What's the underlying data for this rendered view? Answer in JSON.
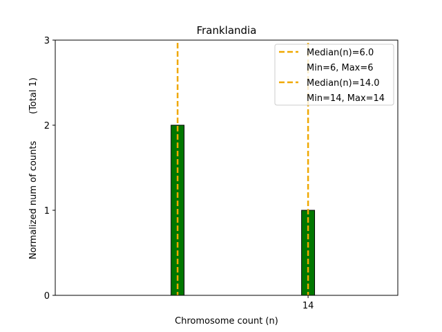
{
  "chart_data": {
    "type": "bar",
    "title": "Franklandia",
    "xlabel": "Chromosome count (n)",
    "ylabel": "Normalized num of counts",
    "ylabel_note": "(Total 1)",
    "ylim": [
      0,
      3
    ],
    "xlim": [
      -1.5,
      19.5
    ],
    "yticks": [
      0,
      1,
      2,
      3
    ],
    "xticks": [
      14
    ],
    "bar_width": 0.8,
    "bars": [
      {
        "x": 6,
        "value": 2
      },
      {
        "x": 14,
        "value": 1
      }
    ],
    "baseline_span": [
      -1.5,
      5.7
    ],
    "bar_color": "#007700",
    "median_color": "#f0a800",
    "medians": [
      {
        "x": 6,
        "label": "Median(n)=6.0",
        "range_label": "Min=6, Max=6"
      },
      {
        "x": 14,
        "label": "Median(n)=14.0",
        "range_label": "Min=14, Max=14"
      }
    ],
    "legend_position": "upper right",
    "grid": false
  }
}
